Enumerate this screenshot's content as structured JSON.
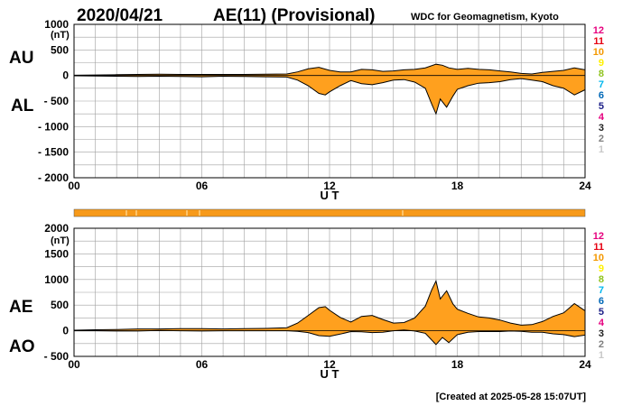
{
  "header": {
    "date": "2020/04/21",
    "title": "AE(11) (Provisional)",
    "source": "WDC for Geomagnetism, Kyoto"
  },
  "footer": {
    "created": "[Created at 2025-05-28 15:07UT]"
  },
  "labels": {
    "unit": "(nT)",
    "ut": "U T",
    "au": "AU",
    "al": "AL",
    "ae": "AE",
    "ao": "AO"
  },
  "station_counts": [
    {
      "label": "12",
      "color": "#e6007e"
    },
    {
      "label": "11",
      "color": "#e60012"
    },
    {
      "label": "10",
      "color": "#f39800"
    },
    {
      "label": "9",
      "color": "#fff100"
    },
    {
      "label": "8",
      "color": "#8fc31f"
    },
    {
      "label": "7",
      "color": "#00b7ee"
    },
    {
      "label": "6",
      "color": "#0068b7"
    },
    {
      "label": "5",
      "color": "#1d2088"
    },
    {
      "label": "4",
      "color": "#e5007f"
    },
    {
      "label": "3",
      "color": "#222222"
    },
    {
      "label": "2",
      "color": "#7f7f7f"
    },
    {
      "label": "1",
      "color": "#c8c8c8"
    }
  ],
  "colors": {
    "fill": "#ffa01e",
    "line": "#000000",
    "grid": "#a0a0a0",
    "bar": "#f79a1a",
    "bar_mark": "#ffe0a0"
  },
  "chart_data": [
    {
      "type": "area",
      "name_upper": "AU",
      "name_lower": "AL",
      "x_ticks": [
        "00",
        "06",
        "12",
        "18",
        "24"
      ],
      "y_ticks": [
        "1000",
        "500",
        "0",
        "- 500",
        "- 1000",
        "- 1500",
        "- 2000"
      ],
      "xlim": [
        0,
        24
      ],
      "ylim": [
        -2000,
        1000
      ],
      "grid": true,
      "upper": [
        [
          0,
          5
        ],
        [
          1,
          10
        ],
        [
          2,
          15
        ],
        [
          3,
          20
        ],
        [
          4,
          25
        ],
        [
          5,
          20
        ],
        [
          6,
          20
        ],
        [
          7,
          20
        ],
        [
          8,
          20
        ],
        [
          9,
          25
        ],
        [
          10,
          30
        ],
        [
          10.5,
          70
        ],
        [
          11,
          130
        ],
        [
          11.5,
          160
        ],
        [
          12,
          100
        ],
        [
          12.5,
          70
        ],
        [
          13,
          70
        ],
        [
          13.5,
          120
        ],
        [
          14,
          110
        ],
        [
          14.5,
          80
        ],
        [
          15,
          90
        ],
        [
          15.5,
          110
        ],
        [
          16,
          120
        ],
        [
          16.5,
          150
        ],
        [
          17,
          220
        ],
        [
          17.3,
          200
        ],
        [
          17.6,
          150
        ],
        [
          18,
          120
        ],
        [
          18.5,
          140
        ],
        [
          19,
          120
        ],
        [
          19.5,
          110
        ],
        [
          20,
          90
        ],
        [
          20.5,
          70
        ],
        [
          21,
          40
        ],
        [
          21.5,
          30
        ],
        [
          22,
          60
        ],
        [
          22.5,
          80
        ],
        [
          23,
          100
        ],
        [
          23.5,
          150
        ],
        [
          24,
          110
        ]
      ],
      "lower": [
        [
          0,
          -5
        ],
        [
          1,
          -10
        ],
        [
          2,
          -15
        ],
        [
          3,
          -20
        ],
        [
          4,
          -15
        ],
        [
          5,
          -20
        ],
        [
          6,
          -25
        ],
        [
          7,
          -15
        ],
        [
          8,
          -20
        ],
        [
          9,
          -25
        ],
        [
          10,
          -30
        ],
        [
          10.5,
          -90
        ],
        [
          11,
          -200
        ],
        [
          11.5,
          -350
        ],
        [
          11.8,
          -380
        ],
        [
          12,
          -320
        ],
        [
          12.5,
          -200
        ],
        [
          13,
          -100
        ],
        [
          13.5,
          -160
        ],
        [
          14,
          -180
        ],
        [
          14.5,
          -140
        ],
        [
          15,
          -90
        ],
        [
          15.5,
          -80
        ],
        [
          16,
          -130
        ],
        [
          16.5,
          -250
        ],
        [
          16.8,
          -560
        ],
        [
          17,
          -750
        ],
        [
          17.2,
          -460
        ],
        [
          17.5,
          -620
        ],
        [
          17.8,
          -400
        ],
        [
          18,
          -270
        ],
        [
          18.5,
          -200
        ],
        [
          19,
          -150
        ],
        [
          19.5,
          -140
        ],
        [
          20,
          -120
        ],
        [
          20.5,
          -80
        ],
        [
          21,
          -60
        ],
        [
          21.5,
          -90
        ],
        [
          22,
          -120
        ],
        [
          22.5,
          -200
        ],
        [
          23,
          -250
        ],
        [
          23.5,
          -380
        ],
        [
          24,
          -280
        ]
      ]
    },
    {
      "type": "area",
      "name_upper": "AE",
      "name_lower": "AO",
      "x_ticks": [
        "00",
        "06",
        "12",
        "18",
        "24"
      ],
      "y_ticks": [
        "2000",
        "1500",
        "1000",
        "500",
        "0",
        "- 500"
      ],
      "xlim": [
        0,
        24
      ],
      "ylim": [
        -500,
        2000
      ],
      "grid": true,
      "upper": [
        [
          0,
          10
        ],
        [
          1,
          20
        ],
        [
          2,
          25
        ],
        [
          3,
          35
        ],
        [
          4,
          35
        ],
        [
          5,
          40
        ],
        [
          6,
          40
        ],
        [
          7,
          35
        ],
        [
          8,
          40
        ],
        [
          9,
          45
        ],
        [
          10,
          60
        ],
        [
          10.5,
          150
        ],
        [
          11,
          300
        ],
        [
          11.5,
          450
        ],
        [
          11.8,
          470
        ],
        [
          12,
          400
        ],
        [
          12.5,
          260
        ],
        [
          13,
          170
        ],
        [
          13.5,
          280
        ],
        [
          14,
          300
        ],
        [
          14.5,
          220
        ],
        [
          15,
          150
        ],
        [
          15.5,
          160
        ],
        [
          16,
          250
        ],
        [
          16.5,
          480
        ],
        [
          16.8,
          800
        ],
        [
          17,
          970
        ],
        [
          17.2,
          620
        ],
        [
          17.5,
          780
        ],
        [
          17.8,
          520
        ],
        [
          18,
          420
        ],
        [
          18.5,
          340
        ],
        [
          19,
          270
        ],
        [
          19.5,
          250
        ],
        [
          20,
          210
        ],
        [
          20.5,
          150
        ],
        [
          21,
          110
        ],
        [
          21.5,
          120
        ],
        [
          22,
          180
        ],
        [
          22.5,
          280
        ],
        [
          23,
          350
        ],
        [
          23.5,
          530
        ],
        [
          24,
          390
        ]
      ],
      "lower": [
        [
          0,
          0
        ],
        [
          1,
          0
        ],
        [
          2,
          -5
        ],
        [
          3,
          -5
        ],
        [
          4,
          5
        ],
        [
          5,
          0
        ],
        [
          6,
          -5
        ],
        [
          7,
          0
        ],
        [
          8,
          0
        ],
        [
          9,
          0
        ],
        [
          10,
          0
        ],
        [
          10.5,
          -10
        ],
        [
          11,
          -35
        ],
        [
          11.5,
          -95
        ],
        [
          12,
          -110
        ],
        [
          12.5,
          -65
        ],
        [
          13,
          -15
        ],
        [
          13.5,
          -20
        ],
        [
          14,
          -35
        ],
        [
          14.5,
          -30
        ],
        [
          15,
          0
        ],
        [
          15.5,
          15
        ],
        [
          16,
          -5
        ],
        [
          16.5,
          -50
        ],
        [
          17,
          -270
        ],
        [
          17.3,
          -130
        ],
        [
          17.6,
          -230
        ],
        [
          18,
          -75
        ],
        [
          18.5,
          -30
        ],
        [
          19,
          -15
        ],
        [
          19.5,
          -15
        ],
        [
          20,
          -15
        ],
        [
          20.5,
          -5
        ],
        [
          21,
          -10
        ],
        [
          21.5,
          -30
        ],
        [
          22,
          -30
        ],
        [
          22.5,
          -60
        ],
        [
          23,
          -75
        ],
        [
          23.5,
          -115
        ],
        [
          24,
          -85
        ]
      ]
    }
  ]
}
